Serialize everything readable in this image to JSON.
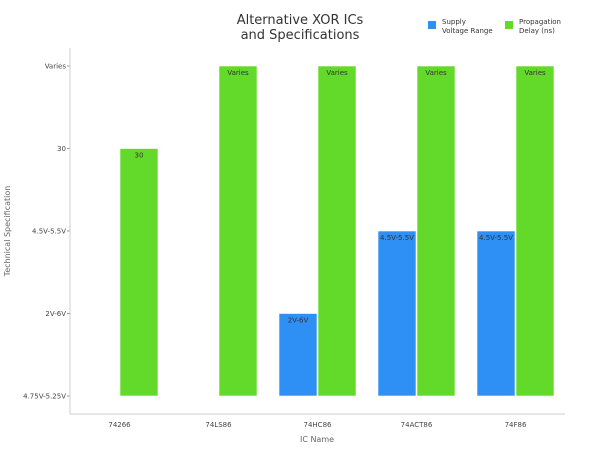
{
  "chart_data": {
    "type": "bar",
    "title": [
      "Alternative XOR ICs",
      "and Specifications"
    ],
    "xlabel": "IC Name",
    "ylabel": "Technical Specification",
    "categories": [
      "74266",
      "74LS86",
      "74HC86",
      "74ACT86",
      "74F86"
    ],
    "y_categories": [
      "4.75V-5.25V",
      "2V-6V",
      "4.5V-5.5V",
      "30",
      "Varies"
    ],
    "series": [
      {
        "name": "Supply Voltage Range",
        "legend_lines": [
          "Supply",
          "Voltage Range"
        ],
        "color": "#2e8ff5",
        "values": [
          "4.75V-5.25V",
          "4.75V-5.25V",
          "2V-6V",
          "4.5V-5.5V",
          "4.5V-5.5V"
        ],
        "labels": [
          "",
          "",
          "2V-6V",
          "4.5V-5.5V",
          "4.5V-5.5V"
        ]
      },
      {
        "name": "Propagation Delay (ns)",
        "legend_lines": [
          "Propagation",
          "Delay (ns)"
        ],
        "color": "#63d929",
        "values": [
          "30",
          "Varies",
          "Varies",
          "Varies",
          "Varies"
        ],
        "labels": [
          "30",
          "Varies",
          "Varies",
          "Varies",
          "Varies"
        ]
      }
    ],
    "legend_position": "top-right",
    "grid": false
  }
}
